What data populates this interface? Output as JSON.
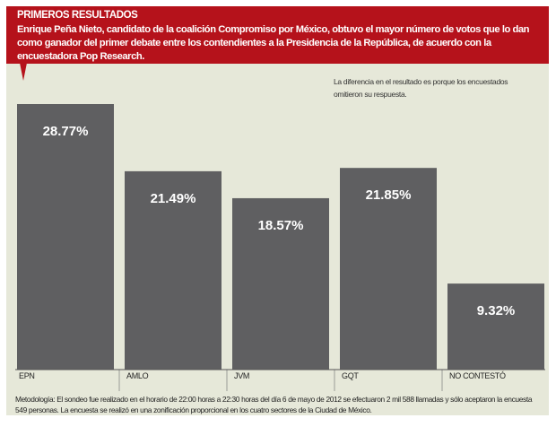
{
  "header": {
    "title": "PRIMEROS RESULTADOS",
    "subtitle": "Enrique Peña Nieto, candidato de la coalición Compromiso por México, obtuvo el mayor número de votos que lo dan como ganador del primer debate entre los contendientes a la Presidencia de la República, de acuerdo con la encuestadora Pop Research."
  },
  "note": "La diferencia en el resultado es porque los encuestados  omitieron su respuesta.",
  "methodology": "Metodología:  El sondeo fue realizado en el horario de 22:00 horas a 22:30 horas del día 6 de mayo de 2012 se efectuaron 2 mil 588 llamadas y sólo aceptaron la encuesta 549 personas. La encuesta se realizó en una zonificación proporcional en los cuatro sectores de la Ciudad de México.",
  "colors": {
    "header": "#b5121b",
    "bar": "#5f5f61",
    "background": "#e6e8d9"
  },
  "chart_data": {
    "type": "bar",
    "title": "PRIMEROS RESULTADOS",
    "categories": [
      "EPN",
      "AMLO",
      "JVM",
      "GQT",
      "NO CONTESTÓ"
    ],
    "values": [
      28.77,
      21.49,
      18.57,
      21.85,
      9.32
    ],
    "value_labels": [
      "28.77%",
      "21.49%",
      "18.57%",
      "21.85%",
      "9.32%"
    ],
    "ylabel": "",
    "xlabel": "",
    "ylim": [
      0,
      30
    ],
    "unit": "%"
  }
}
